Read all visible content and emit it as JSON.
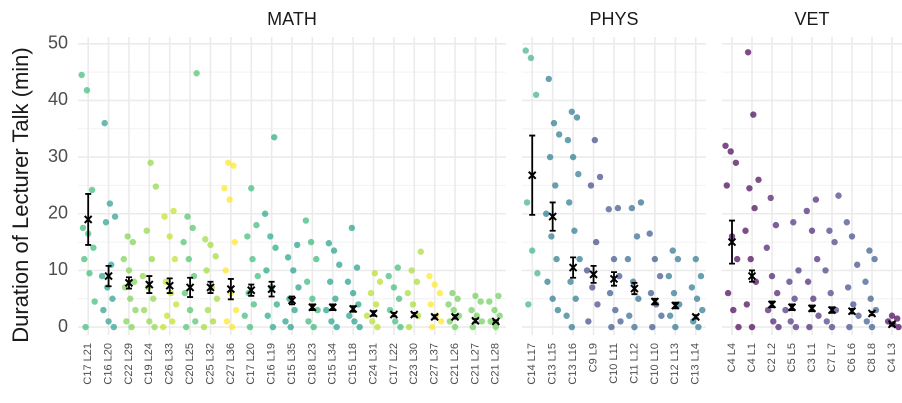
{
  "chart_data": [
    {
      "type": "strip",
      "title": "MATH",
      "ylabel": "Duration of Lecturer Talk (min)",
      "ylim": [
        -1.4,
        51.2
      ],
      "yticks": [
        0,
        10,
        20,
        30,
        40,
        50
      ],
      "grid": true,
      "categories": [
        "C17 L21",
        "C16 L20",
        "C22 L29",
        "C19 L24",
        "C26 L33",
        "C20 L25",
        "C25 L32",
        "C27 L36",
        "C17 L20",
        "C16 L19",
        "C15 L35",
        "C18 L23",
        "C15 L34",
        "C15 L18",
        "C24 L31",
        "C17 L22",
        "C23 L30",
        "C27 L37",
        "C21 L26",
        "C21 L27",
        "C21 L28"
      ],
      "colors": [
        "#3cbb75",
        "#2a9d8f",
        "#7ad151",
        "#8fd744",
        "#c2df23",
        "#4ec36b",
        "#a0da39",
        "#fde725",
        "#3cbb75",
        "#22a884",
        "#1f9e89",
        "#35b779",
        "#1f9e89",
        "#1f9e89",
        "#b5de2b",
        "#3cbb75",
        "#a8db34",
        "#fde725",
        "#6ece58",
        "#6ece58",
        "#6ece58"
      ],
      "points": [
        [
          44.5,
          41.8,
          24.2,
          17.5,
          16.5,
          14,
          12,
          9.5,
          4.5,
          0
        ],
        [
          36,
          21.8,
          19.5,
          18.5,
          11,
          9,
          7,
          5,
          3,
          1,
          0
        ],
        [
          16,
          15,
          12,
          10,
          8,
          7,
          5,
          3,
          1,
          0
        ],
        [
          29,
          24.8,
          17,
          12,
          9,
          7,
          5,
          3,
          1,
          0
        ],
        [
          20.5,
          19.5,
          16,
          12,
          8,
          6,
          4,
          2,
          1,
          0
        ],
        [
          44.8,
          19.5,
          17.5,
          15,
          12,
          9,
          6,
          3,
          1,
          0
        ],
        [
          15.5,
          14.5,
          12.5,
          10,
          7,
          5,
          3,
          1,
          0
        ],
        [
          29,
          28.5,
          24.5,
          22.5,
          15,
          10,
          6,
          3,
          1,
          0
        ],
        [
          24.5,
          18,
          16,
          12,
          9,
          6,
          4,
          2,
          0
        ],
        [
          33.5,
          20,
          16,
          14,
          10,
          7,
          4,
          2,
          0
        ],
        [
          14.5,
          12.3,
          10,
          7,
          5,
          3,
          1,
          0
        ],
        [
          18.8,
          15,
          12,
          8,
          5,
          3,
          1,
          0
        ],
        [
          14.8,
          13.5,
          11,
          8,
          5,
          3,
          1,
          0
        ],
        [
          17.5,
          10.5,
          8,
          6,
          4,
          2,
          1,
          0
        ],
        [
          9.5,
          8,
          6,
          4,
          2,
          1,
          0
        ],
        [
          10.5,
          9,
          7,
          5,
          3,
          1,
          0
        ],
        [
          13.3,
          10,
          8,
          6,
          4,
          2,
          0
        ],
        [
          9,
          7.5,
          6,
          4,
          2,
          1,
          0
        ],
        [
          6,
          5,
          4,
          3,
          2,
          1,
          0
        ],
        [
          5.5,
          4.5,
          3,
          2,
          1,
          0
        ],
        [
          5.5,
          4.5,
          3,
          2,
          1,
          0
        ]
      ],
      "means": [
        19,
        9,
        7.8,
        7.5,
        7.3,
        7,
        7,
        6.7,
        6.5,
        6.7,
        4.7,
        3.5,
        3.5,
        3.2,
        2.4,
        2.2,
        2.2,
        1.8,
        1.8,
        1.1,
        1.0
      ],
      "errors": [
        4.5,
        1.8,
        1,
        1.5,
        1.3,
        1.7,
        1,
        1.8,
        1,
        1.3,
        0.7,
        0.5,
        0.5,
        0.5,
        0.4,
        0.3,
        0.3,
        0.3,
        0.3,
        0.3,
        0.2
      ]
    },
    {
      "type": "strip",
      "title": "PHYS",
      "ylim": [
        -1.4,
        51.2
      ],
      "yticks": [
        0,
        10,
        20,
        30,
        40,
        50
      ],
      "grid": true,
      "categories": [
        "C14 L17",
        "C13 L15",
        "C13 L16",
        "C9 L9",
        "C10 L11",
        "C11 L12",
        "C10 L10",
        "C12 L13",
        "C13 L14"
      ],
      "colors": [
        "#3fb08a",
        "#2a788e",
        "#2a788e",
        "#414487",
        "#3b528b",
        "#31688e",
        "#3b528b",
        "#2c728e",
        "#2a788e"
      ],
      "points": [
        [
          48.8,
          47.5,
          41,
          22,
          13.5,
          9.5,
          4
        ],
        [
          43.8,
          36,
          34,
          30,
          25,
          20,
          16,
          12,
          8,
          5,
          3
        ],
        [
          38,
          37,
          33,
          30,
          27,
          22,
          17,
          12,
          8,
          5,
          2,
          0
        ],
        [
          33,
          26.5,
          25,
          15,
          10,
          7,
          4,
          1
        ],
        [
          21,
          20.8,
          12,
          9,
          6,
          3,
          1,
          0
        ],
        [
          22,
          21,
          16,
          12,
          8,
          5,
          2,
          0
        ],
        [
          16.5,
          12,
          9,
          6,
          4,
          2,
          0
        ],
        [
          13.5,
          12,
          9,
          6,
          4,
          2,
          0
        ],
        [
          12,
          9,
          7,
          5,
          3,
          1,
          0
        ]
      ],
      "means": [
        26.8,
        19.5,
        10.5,
        9.3,
        8.5,
        6.8,
        4.5,
        3.8,
        1.8
      ],
      "errors": [
        7,
        2.5,
        1.8,
        1.5,
        1.2,
        1,
        0.5,
        0.5,
        0.3
      ]
    },
    {
      "type": "strip",
      "title": "VET",
      "ylim": [
        -1.4,
        51.2
      ],
      "yticks": [
        0,
        10,
        20,
        30,
        40,
        50
      ],
      "grid": true,
      "categories": [
        "C4 L4",
        "C4 L1",
        "C2 L2",
        "C5 L5",
        "C3 L1",
        "C7 L7",
        "C6 L6",
        "C8 L8",
        "C4 L3"
      ],
      "colors": [
        "#440154",
        "#440154",
        "#48186a",
        "#472d7b",
        "#482173",
        "#433e85",
        "#3e4989",
        "#38588c",
        "#440154"
      ],
      "points": [
        [
          32,
          31,
          29,
          25,
          16,
          12,
          6,
          3,
          0
        ],
        [
          48.5,
          37.5,
          26,
          24.5,
          21,
          17,
          12,
          8,
          4,
          0
        ],
        [
          22.8,
          18,
          14,
          9,
          6,
          3,
          1,
          0
        ],
        [
          18.5,
          10,
          8,
          5,
          3,
          1,
          0
        ],
        [
          22.5,
          20.5,
          17,
          12,
          8,
          5,
          2,
          0
        ],
        [
          23.2,
          17,
          15,
          10,
          6,
          3,
          1,
          0
        ],
        [
          18.5,
          16,
          11,
          7,
          4,
          2,
          0
        ],
        [
          13.5,
          12,
          8,
          5,
          3,
          1,
          0
        ],
        [
          2,
          1.5,
          1,
          0.5,
          0
        ]
      ],
      "means": [
        15,
        9,
        4,
        3.5,
        3.3,
        3,
        2.8,
        2.4,
        0.5
      ],
      "errors": [
        3.8,
        1,
        0.5,
        0.5,
        0.5,
        0.5,
        0.4,
        0.3,
        0.2
      ]
    }
  ]
}
